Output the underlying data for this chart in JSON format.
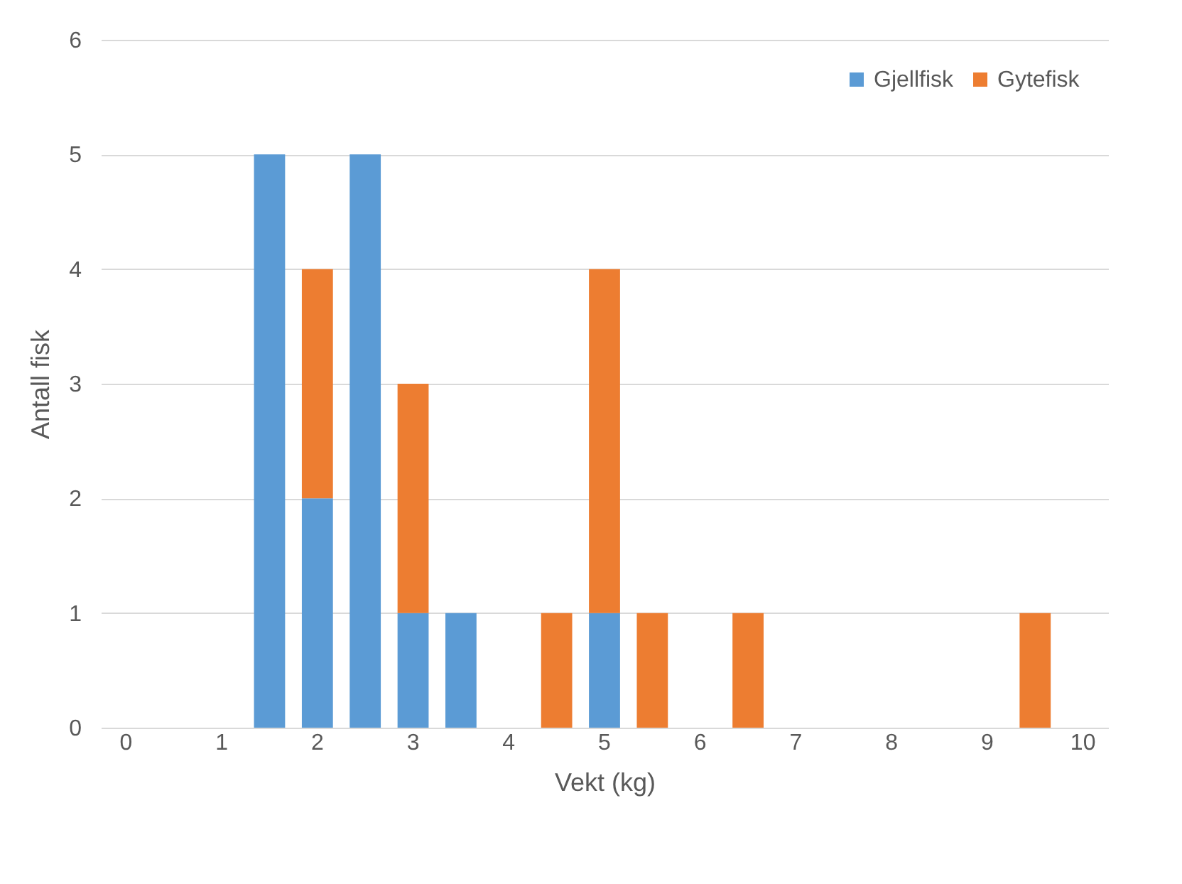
{
  "chart_data": {
    "type": "bar",
    "stacked": true,
    "xlabel": "Vekt (kg)",
    "ylabel": "Antall fisk",
    "categories": [
      "0",
      null,
      "1",
      null,
      "2",
      null,
      "3",
      null,
      "4",
      null,
      "5",
      null,
      "6",
      null,
      "7",
      null,
      "8",
      null,
      "9",
      null,
      "10"
    ],
    "series": [
      {
        "name": "Gjellfisk",
        "color": "#5b9bd5",
        "values": [
          0,
          0,
          0,
          5,
          2,
          5,
          1,
          1,
          0,
          0,
          1,
          0,
          0,
          0,
          0,
          0,
          0,
          0,
          0,
          0,
          0
        ]
      },
      {
        "name": "Gytefisk",
        "color": "#ed7d31",
        "values": [
          0,
          0,
          0,
          0,
          2,
          0,
          2,
          0,
          0,
          1,
          3,
          1,
          0,
          1,
          0,
          0,
          0,
          0,
          0,
          1,
          0
        ]
      }
    ],
    "ylim": [
      0,
      6
    ],
    "yticks": [
      0,
      1,
      2,
      3,
      4,
      5,
      6
    ],
    "grid": "y",
    "legend": "top right"
  }
}
